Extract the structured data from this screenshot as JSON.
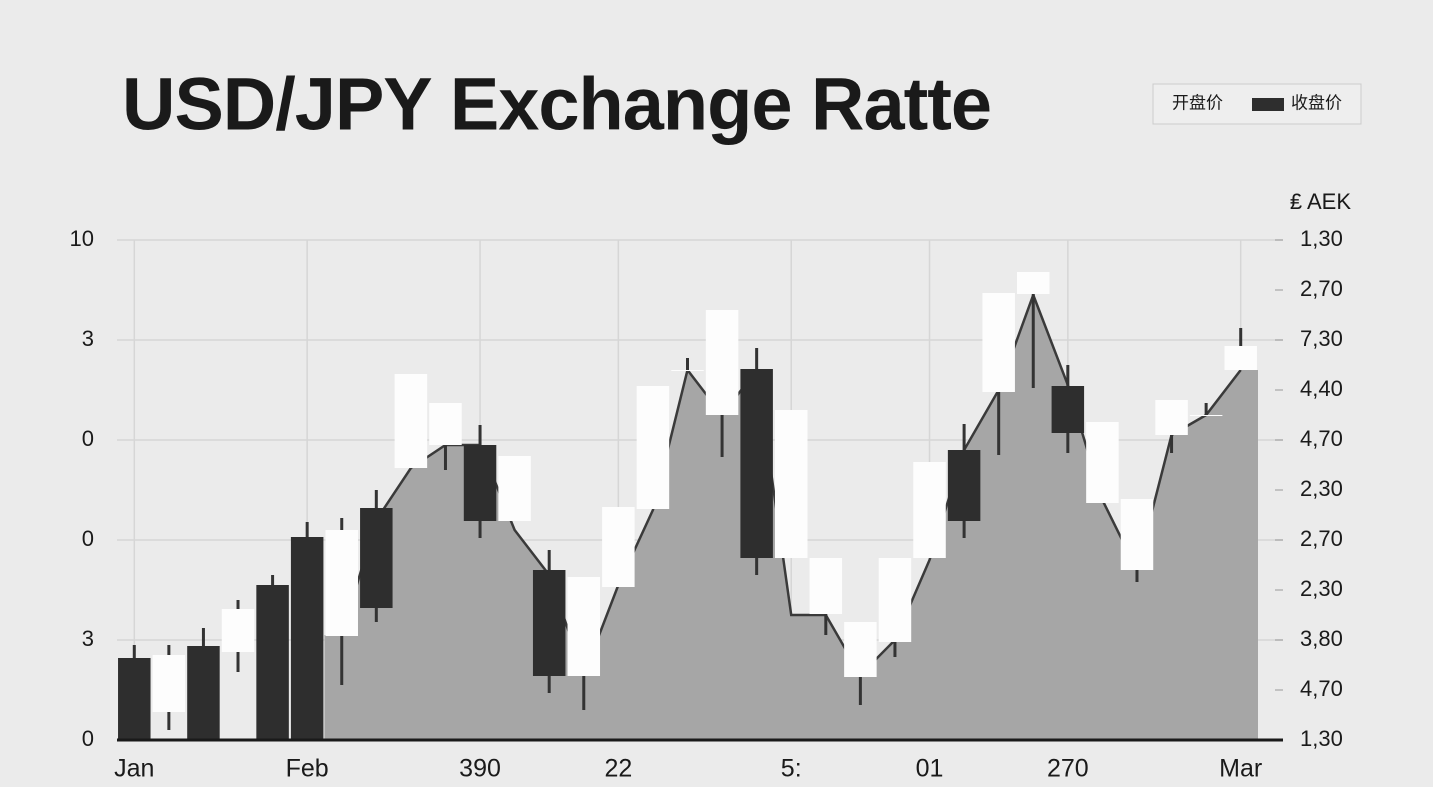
{
  "chart_data": {
    "type": "candlestick",
    "title": "USD/JPY Exchange Ratte",
    "series": [
      {
        "name": "开盘价",
        "color": "#fdfdfd"
      },
      {
        "name": "收盘价",
        "color": "#2e2e2e"
      }
    ],
    "categories": [
      "Jan",
      null,
      null,
      null,
      null,
      "Feb",
      null,
      null,
      null,
      null,
      "390",
      null,
      null,
      null,
      "22",
      null,
      null,
      null,
      null,
      "5:",
      null,
      null,
      null,
      "01",
      null,
      null,
      null,
      "270",
      null,
      null,
      null,
      null,
      "Mar"
    ],
    "open": [
      1.64,
      0.56,
      1.88,
      1.76,
      3.1,
      4.06,
      2.08,
      4.64,
      5.44,
      5.9,
      5.9,
      4.38,
      3.4,
      1.28,
      3.06,
      4.62,
      7.4,
      6.5,
      7.42,
      3.64,
      2.52,
      1.26,
      1.96,
      3.64,
      5.8,
      6.96,
      8.92,
      7.08,
      4.74,
      3.4,
      6.1,
      6.5,
      7.4
    ],
    "high": [
      1.9,
      1.9,
      2.24,
      2.8,
      3.3,
      4.36,
      4.44,
      5.0,
      7.32,
      6.74,
      6.3,
      5.68,
      3.8,
      3.26,
      4.66,
      7.08,
      7.64,
      8.6,
      7.84,
      6.6,
      3.64,
      2.36,
      3.64,
      5.56,
      6.32,
      8.94,
      9.36,
      7.5,
      6.36,
      4.82,
      6.8,
      6.74,
      8.24
    ],
    "low": [
      0,
      0.2,
      0,
      1.36,
      0,
      0,
      1.1,
      2.36,
      5.44,
      5.4,
      4.04,
      4.38,
      0.94,
      0.6,
      3.06,
      4.62,
      7.4,
      5.66,
      3.3,
      3.64,
      2.1,
      0.7,
      1.66,
      3.64,
      4.04,
      5.7,
      7.04,
      5.74,
      4.74,
      3.16,
      5.74,
      6.5,
      7.4
    ],
    "close": [
      0,
      1.7,
      0,
      2.62,
      0,
      0,
      4.2,
      2.64,
      7.32,
      6.74,
      4.38,
      5.68,
      1.28,
      3.26,
      4.66,
      7.08,
      7.4,
      8.6,
      3.64,
      6.6,
      3.64,
      2.36,
      3.64,
      5.56,
      4.38,
      8.94,
      9.36,
      6.14,
      6.36,
      4.82,
      6.8,
      6.5,
      7.88
    ],
    "area": {
      "color": "#a6a6a6",
      "values": [
        null,
        null,
        null,
        null,
        null,
        null,
        2.1,
        4.4,
        5.44,
        5.9,
        5.9,
        4.2,
        3.3,
        1.3,
        3.1,
        4.6,
        7.4,
        6.5,
        7.4,
        2.5,
        2.5,
        1.3,
        2.0,
        3.6,
        5.8,
        7.0,
        8.9,
        7.1,
        4.8,
        3.4,
        6.1,
        6.5,
        7.4
      ]
    },
    "ylim": [
      0,
      10
    ],
    "yticks": [
      0,
      {
        "value": 2,
        "label": "3"
      },
      {
        "value": 4,
        "label": "0"
      },
      {
        "value": 6,
        "label": "0"
      },
      {
        "value": 8,
        "label": "3"
      },
      10
    ],
    "y2label": "₤ AEK",
    "y2lim": [
      0,
      10
    ],
    "y2ticks": [
      {
        "value": 0,
        "label": "1,30"
      },
      {
        "value": 1,
        "label": "4,70"
      },
      {
        "value": 2,
        "label": "3,80"
      },
      {
        "value": 3,
        "label": "2,30"
      },
      {
        "value": 4,
        "label": "2,70"
      },
      {
        "value": 5,
        "label": "2,30"
      },
      {
        "value": 6,
        "label": "4,70"
      },
      {
        "value": 7,
        "label": "4,40"
      },
      {
        "value": 8,
        "label": "7,30"
      },
      {
        "value": 9,
        "label": "2,70"
      },
      {
        "value": 10,
        "label": "1,30"
      }
    ],
    "grid": true
  }
}
